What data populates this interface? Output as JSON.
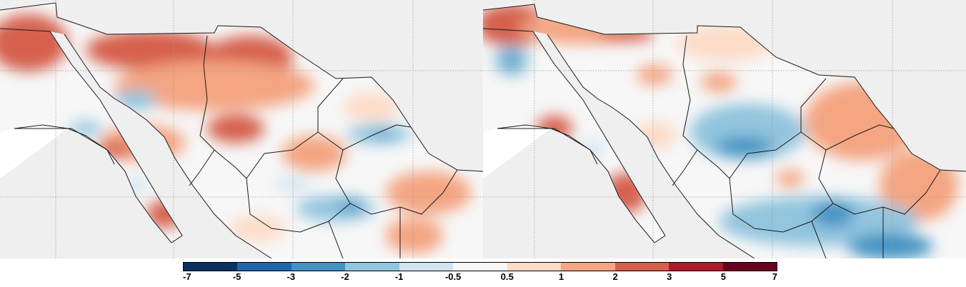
{
  "map": {
    "panels": [
      "left",
      "right"
    ],
    "land_color": "#f7f7f7",
    "outside_color": "#efefef",
    "water_color": "#ffffff",
    "border_color": "#1a1a1a",
    "grid_color": "#9a9a9a"
  },
  "colorbar": {
    "ticks": [
      "-7",
      "-5",
      "-3",
      "-2",
      "-1",
      "-0.5",
      "0.5",
      "1",
      "2",
      "3",
      "5",
      "7"
    ],
    "colors": [
      "#0b3160",
      "#2166ac",
      "#4393c3",
      "#92c5de",
      "#d1e5f0",
      "#f7f7f7",
      "#fddbc7",
      "#f4a582",
      "#d6604d",
      "#b2182b",
      "#67001f"
    ]
  },
  "chart_data": {
    "type": "heatmap",
    "colorbar_levels": [
      -7,
      -5,
      -3,
      -2,
      -1,
      -0.5,
      0.5,
      1,
      2,
      3,
      5,
      7
    ],
    "panels": 2
  }
}
